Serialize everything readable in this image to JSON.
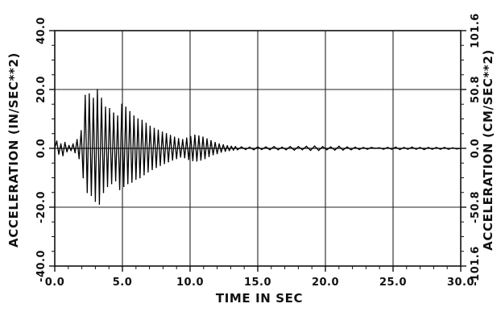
{
  "chart_data": {
    "type": "line",
    "title": "",
    "xlabel": "TIME IN SEC",
    "ylabel_left": "ACCELERATION (IN/SEC**2)",
    "ylabel_right": "ACCELERATION (CM/SEC**2)",
    "xlim": [
      0,
      30
    ],
    "ylim_left": [
      -40,
      40
    ],
    "ylim_right": [
      -101.6,
      101.6
    ],
    "x_ticks": [
      0,
      5,
      10,
      15,
      20,
      25,
      30
    ],
    "x_tick_labels": [
      "0.0",
      "5.0",
      "10.0",
      "15.0",
      "20.0",
      "25.0",
      "30.0"
    ],
    "y_ticks_left": [
      -40,
      -20,
      0,
      20,
      40
    ],
    "y_tick_labels_left": [
      "-40.0",
      "-20.0",
      "0.0",
      "20.0",
      "40.0"
    ],
    "y_ticks_right": [
      -40,
      -20,
      0,
      20,
      40
    ],
    "y_tick_labels_right": [
      "-101.6",
      "-50.8",
      "0.0",
      "50.8",
      "101.6"
    ],
    "grid": true,
    "series": [
      {
        "points": [
          [
            0.0,
            0.0
          ],
          [
            0.15,
            2.5
          ],
          [
            0.3,
            -2.0
          ],
          [
            0.45,
            1.5
          ],
          [
            0.6,
            -2.5
          ],
          [
            0.75,
            2.0
          ],
          [
            0.9,
            -1.2
          ],
          [
            1.05,
            1.0
          ],
          [
            1.2,
            -0.8
          ],
          [
            1.35,
            1.5
          ],
          [
            1.5,
            -1.5
          ],
          [
            1.65,
            3.0
          ],
          [
            1.8,
            -3.5
          ],
          [
            1.95,
            6.0
          ],
          [
            2.1,
            -10.0
          ],
          [
            2.25,
            18.0
          ],
          [
            2.4,
            -15.0
          ],
          [
            2.55,
            18.5
          ],
          [
            2.7,
            -16.0
          ],
          [
            2.85,
            17.0
          ],
          [
            3.0,
            -18.0
          ],
          [
            3.15,
            20.0
          ],
          [
            3.3,
            -19.0
          ],
          [
            3.45,
            17.0
          ],
          [
            3.6,
            -15.0
          ],
          [
            3.75,
            14.0
          ],
          [
            3.9,
            -13.0
          ],
          [
            4.05,
            13.5
          ],
          [
            4.2,
            -12.0
          ],
          [
            4.35,
            12.0
          ],
          [
            4.5,
            -11.0
          ],
          [
            4.65,
            11.0
          ],
          [
            4.8,
            -14.0
          ],
          [
            4.95,
            15.0
          ],
          [
            5.1,
            -13.0
          ],
          [
            5.25,
            14.0
          ],
          [
            5.4,
            -12.0
          ],
          [
            5.55,
            12.5
          ],
          [
            5.7,
            -11.5
          ],
          [
            5.85,
            11.0
          ],
          [
            6.0,
            -10.5
          ],
          [
            6.15,
            10.0
          ],
          [
            6.3,
            -10.0
          ],
          [
            6.45,
            9.5
          ],
          [
            6.6,
            -9.0
          ],
          [
            6.75,
            8.5
          ],
          [
            6.9,
            -8.0
          ],
          [
            7.05,
            7.5
          ],
          [
            7.2,
            -7.2
          ],
          [
            7.35,
            6.8
          ],
          [
            7.5,
            -6.5
          ],
          [
            7.65,
            6.2
          ],
          [
            7.8,
            -5.8
          ],
          [
            7.95,
            5.5
          ],
          [
            8.1,
            -5.2
          ],
          [
            8.25,
            5.0
          ],
          [
            8.4,
            -4.6
          ],
          [
            8.55,
            4.4
          ],
          [
            8.7,
            -4.0
          ],
          [
            8.85,
            3.8
          ],
          [
            9.0,
            -3.5
          ],
          [
            9.15,
            3.3
          ],
          [
            9.3,
            -3.0
          ],
          [
            9.45,
            3.0
          ],
          [
            9.6,
            -3.2
          ],
          [
            9.75,
            3.5
          ],
          [
            9.9,
            -3.8
          ],
          [
            10.05,
            4.0
          ],
          [
            10.2,
            -4.2
          ],
          [
            10.35,
            4.5
          ],
          [
            10.5,
            -4.3
          ],
          [
            10.65,
            4.2
          ],
          [
            10.8,
            -4.0
          ],
          [
            10.95,
            3.8
          ],
          [
            11.1,
            -3.5
          ],
          [
            11.25,
            3.2
          ],
          [
            11.4,
            -2.8
          ],
          [
            11.55,
            2.6
          ],
          [
            11.7,
            -2.2
          ],
          [
            11.85,
            2.0
          ],
          [
            12.0,
            -1.8
          ],
          [
            12.15,
            1.5
          ],
          [
            12.3,
            -1.3
          ],
          [
            12.45,
            1.2
          ],
          [
            12.6,
            -1.0
          ],
          [
            12.75,
            0.9
          ],
          [
            12.9,
            -0.8
          ],
          [
            13.05,
            0.7
          ],
          [
            13.2,
            -0.6
          ],
          [
            13.35,
            0.6
          ],
          [
            13.5,
            -0.5
          ],
          [
            13.8,
            0.5
          ],
          [
            14.1,
            -0.4
          ],
          [
            14.4,
            0.4
          ],
          [
            14.7,
            -0.5
          ],
          [
            15.0,
            0.5
          ],
          [
            15.3,
            -0.4
          ],
          [
            15.6,
            0.5
          ],
          [
            15.9,
            -0.5
          ],
          [
            16.2,
            0.6
          ],
          [
            16.5,
            -0.5
          ],
          [
            16.8,
            0.4
          ],
          [
            17.1,
            -0.5
          ],
          [
            17.4,
            0.6
          ],
          [
            17.7,
            -0.6
          ],
          [
            18.0,
            0.6
          ],
          [
            18.3,
            -0.5
          ],
          [
            18.6,
            0.7
          ],
          [
            18.9,
            -0.7
          ],
          [
            19.2,
            0.8
          ],
          [
            19.5,
            -0.7
          ],
          [
            19.8,
            0.6
          ],
          [
            20.1,
            -0.5
          ],
          [
            20.4,
            0.5
          ],
          [
            20.7,
            -0.6
          ],
          [
            21.0,
            0.7
          ],
          [
            21.3,
            -0.6
          ],
          [
            21.6,
            0.5
          ],
          [
            21.9,
            -0.5
          ],
          [
            22.2,
            0.4
          ],
          [
            22.5,
            -0.4
          ],
          [
            22.8,
            0.3
          ],
          [
            23.1,
            -0.3
          ],
          [
            23.4,
            0.3
          ],
          [
            23.7,
            0.0
          ],
          [
            24.0,
            0.2
          ],
          [
            24.3,
            -0.3
          ],
          [
            24.6,
            0.3
          ],
          [
            24.9,
            -0.3
          ],
          [
            25.2,
            0.4
          ],
          [
            25.5,
            -0.4
          ],
          [
            25.8,
            0.3
          ],
          [
            26.1,
            -0.3
          ],
          [
            26.4,
            0.4
          ],
          [
            26.7,
            -0.3
          ],
          [
            27.0,
            0.3
          ],
          [
            27.3,
            -0.4
          ],
          [
            27.6,
            0.3
          ],
          [
            27.9,
            -0.3
          ],
          [
            28.2,
            0.3
          ],
          [
            28.5,
            -0.3
          ],
          [
            28.8,
            0.3
          ],
          [
            29.1,
            -0.3
          ],
          [
            29.4,
            0.2
          ],
          [
            29.7,
            -0.2
          ],
          [
            30.0,
            0.0
          ]
        ]
      }
    ]
  }
}
